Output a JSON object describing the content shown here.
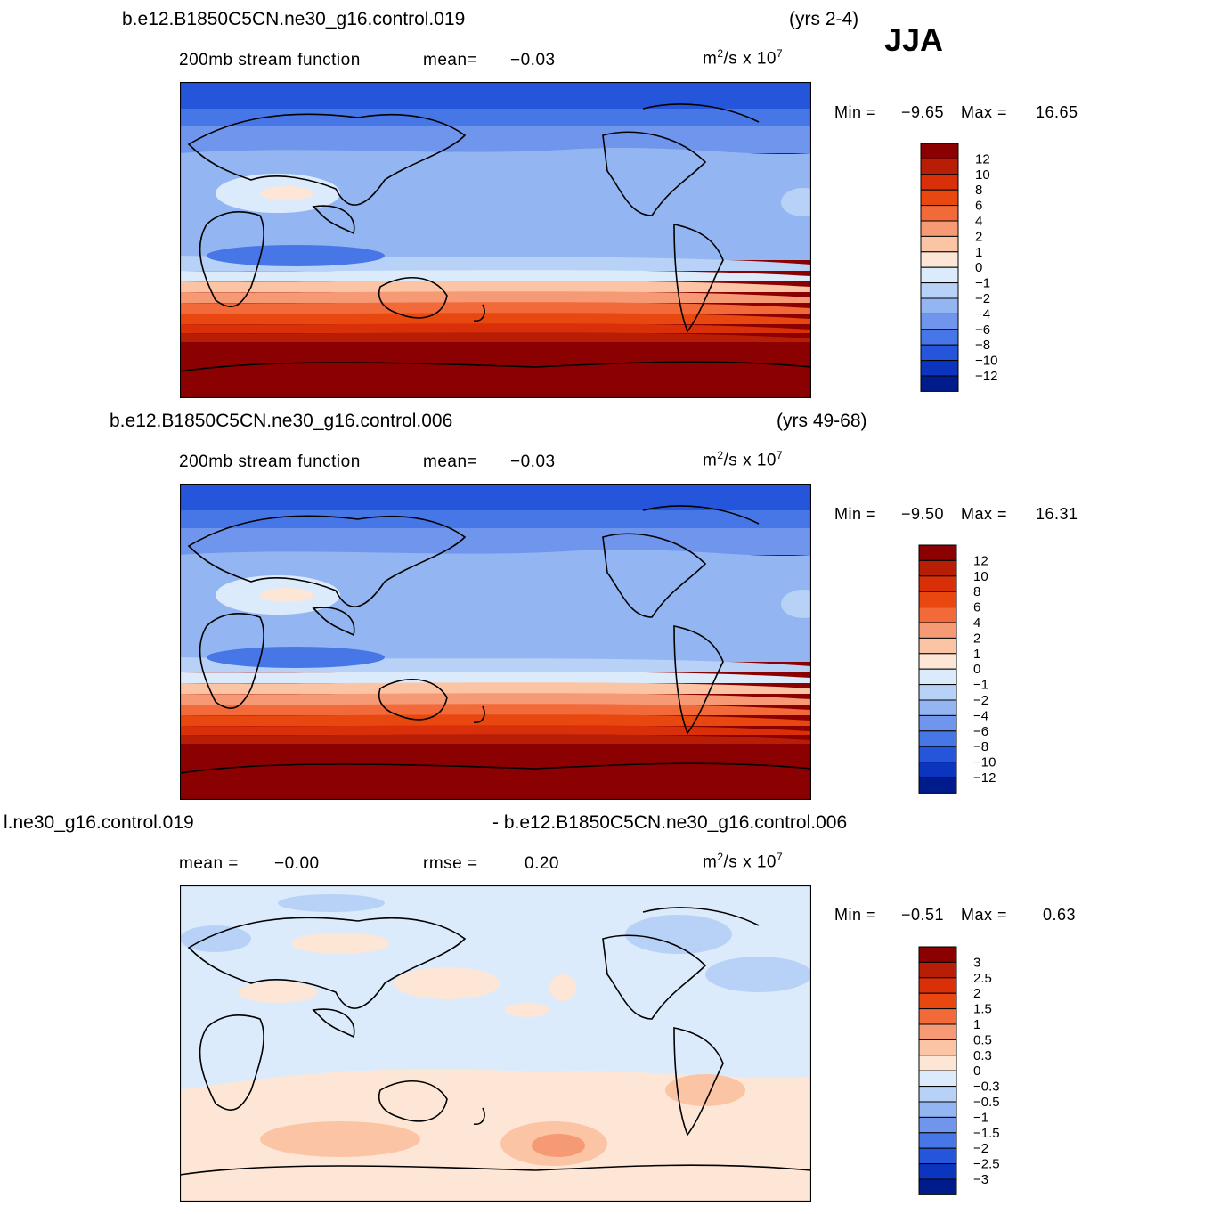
{
  "season": "JJA",
  "panels": [
    {
      "id": "p1",
      "case_title": "b.e12.B1850C5CN.ne30_g16.control.019",
      "years": "(yrs 2-4)",
      "subtitle": "200mb stream function",
      "mean_label": "mean=",
      "mean_value": "−0.03",
      "units_base": "m",
      "units_exp": "2",
      "units_mid": "/s x 10",
      "units_pow": "7",
      "min_label": "Min =",
      "min_value": "−9.65",
      "max_label": "Max =",
      "max_value": "16.65",
      "levels": [
        "12",
        "10",
        "8",
        "6",
        "4",
        "2",
        "1",
        "0",
        "−1",
        "−2",
        "−4",
        "−6",
        "−8",
        "−10",
        "−12"
      ],
      "colors": [
        "#8b0000",
        "#b81e06",
        "#d9300a",
        "#e8470f",
        "#f2693a",
        "#f69a75",
        "#fbc4a5",
        "#fde6d6",
        "#dcebfb",
        "#b8d2f7",
        "#93b6f2",
        "#6f96ec",
        "#4777e6",
        "#2555db",
        "#0b34bf",
        "#001c8c"
      ]
    },
    {
      "id": "p2",
      "case_title": "b.e12.B1850C5CN.ne30_g16.control.006",
      "years": "(yrs 49-68)",
      "subtitle": "200mb stream function",
      "mean_label": "mean=",
      "mean_value": "−0.03",
      "units_base": "m",
      "units_exp": "2",
      "units_mid": "/s x 10",
      "units_pow": "7",
      "min_label": "Min =",
      "min_value": "−9.50",
      "max_label": "Max =",
      "max_value": "16.31",
      "levels": [
        "12",
        "10",
        "8",
        "6",
        "4",
        "2",
        "1",
        "0",
        "−1",
        "−2",
        "−4",
        "−6",
        "−8",
        "−10",
        "−12"
      ],
      "colors": [
        "#8b0000",
        "#b81e06",
        "#d9300a",
        "#e8470f",
        "#f2693a",
        "#f69a75",
        "#fbc4a5",
        "#fde6d6",
        "#dcebfb",
        "#b8d2f7",
        "#93b6f2",
        "#6f96ec",
        "#4777e6",
        "#2555db",
        "#0b34bf",
        "#001c8c"
      ]
    },
    {
      "id": "p3",
      "case_left": "l.ne30_g16.control.019",
      "case_right": "- b.e12.B1850C5CN.ne30_g16.control.006",
      "mean_label": "mean =",
      "mean_value": "−0.00",
      "rmse_label": "rmse =",
      "rmse_value": "0.20",
      "units_base": "m",
      "units_exp": "2",
      "units_mid": "/s x 10",
      "units_pow": "7",
      "min_label": "Min =",
      "min_value": "−0.51",
      "max_label": "Max =",
      "max_value": "0.63",
      "levels": [
        "3",
        "2.5",
        "2",
        "1.5",
        "1",
        "0.5",
        "0.3",
        "0",
        "−0.3",
        "−0.5",
        "−1",
        "−1.5",
        "−2",
        "−2.5",
        "−3"
      ],
      "colors": [
        "#8b0000",
        "#b81e06",
        "#d9300a",
        "#e8470f",
        "#f2693a",
        "#f69a75",
        "#fbc4a5",
        "#fde6d6",
        "#dcebfb",
        "#b8d2f7",
        "#93b6f2",
        "#6f96ec",
        "#4777e6",
        "#2555db",
        "#0b34bf",
        "#001c8c"
      ]
    }
  ]
}
